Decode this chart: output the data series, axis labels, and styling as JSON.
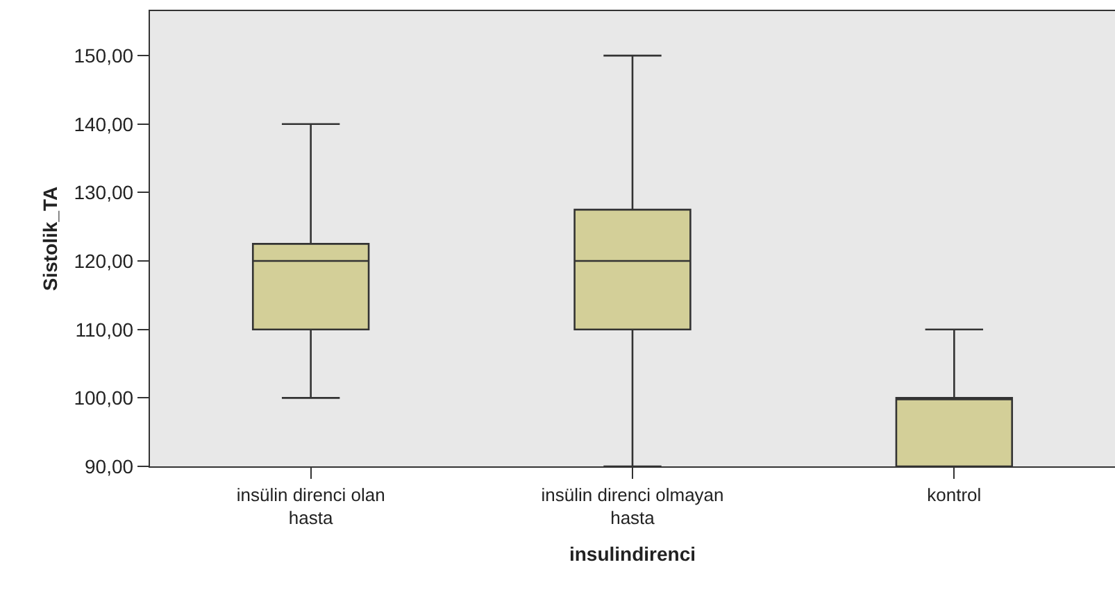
{
  "chart_data": {
    "type": "box",
    "xlabel": "insulindirenci",
    "ylabel": "Sistolik_TA",
    "categories": [
      "insülin direnci olan hasta",
      "insülin direnci olmayan hasta",
      "kontrol"
    ],
    "color": "#d3cf98",
    "boxes": [
      {
        "low": 100,
        "q1": 110,
        "median": 120,
        "q3": 122.5,
        "high": 140
      },
      {
        "low": 90,
        "q1": 110,
        "median": 120,
        "q3": 127.5,
        "high": 150
      },
      {
        "low": 90,
        "q1": 90,
        "median": 100,
        "q3": 100,
        "high": 110
      }
    ],
    "ylim": [
      90,
      156.5
    ],
    "yticks": [
      {
        "value": 90,
        "label": "90,00"
      },
      {
        "value": 100,
        "label": "100,00"
      },
      {
        "value": 110,
        "label": "110,00"
      },
      {
        "value": 120,
        "label": "120,00"
      },
      {
        "value": 130,
        "label": "130,00"
      },
      {
        "value": 140,
        "label": "140,00"
      },
      {
        "value": 150,
        "label": "150,00"
      }
    ],
    "grid": false
  }
}
